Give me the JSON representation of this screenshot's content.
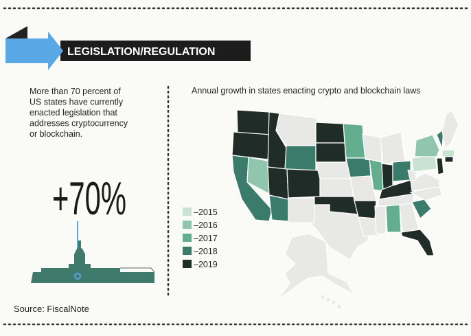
{
  "header": {
    "title": "LEGISLATION/REGULATION"
  },
  "intro": {
    "lines": [
      "More than 70 percent of",
      "US states have currently",
      "enacted legislation that",
      "addresses cryptocurrency",
      "or blockchain."
    ]
  },
  "stat": {
    "value": "+70%"
  },
  "map": {
    "title": "Annual growth in states enacting crypto and blockchain laws",
    "legend": [
      {
        "label": "–2015",
        "color": "#c9e2d2"
      },
      {
        "label": "–2016",
        "color": "#8fc6ad"
      },
      {
        "label": "–2017",
        "color": "#62ae8f"
      },
      {
        "label": "–2018",
        "color": "#3b7b6b"
      },
      {
        "label": "–2019",
        "color": "#1f2c27"
      }
    ]
  },
  "source": "Source: FiscalNote"
}
